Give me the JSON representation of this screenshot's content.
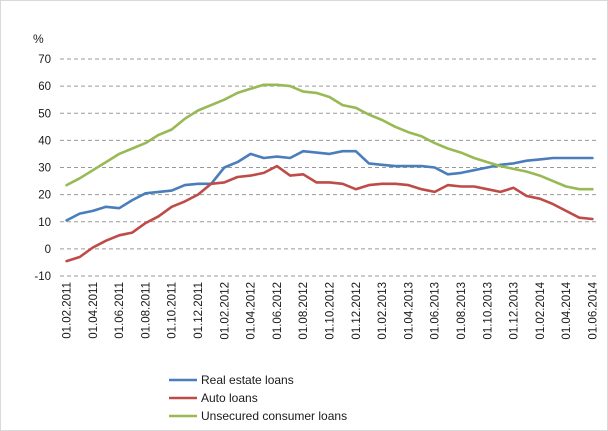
{
  "chart_data": {
    "type": "line",
    "ylabel": "%",
    "ylim": [
      -10,
      70
    ],
    "ytick_step": 10,
    "grid": "horizontal dashed",
    "legend_position": "bottom-left",
    "x": [
      "01.02.2011",
      "01.03.2011",
      "01.04.2011",
      "01.05.2011",
      "01.06.2011",
      "01.07.2011",
      "01.08.2011",
      "01.09.2011",
      "01.10.2011",
      "01.11.2011",
      "01.12.2011",
      "01.01.2012",
      "01.02.2012",
      "01.03.2012",
      "01.04.2012",
      "01.05.2012",
      "01.06.2012",
      "01.07.2012",
      "01.08.2012",
      "01.09.2012",
      "01.10.2012",
      "01.11.2012",
      "01.12.2012",
      "01.01.2013",
      "01.02.2013",
      "01.03.2013",
      "01.04.2013",
      "01.05.2013",
      "01.06.2013",
      "01.07.2013",
      "01.08.2013",
      "01.09.2013",
      "01.10.2013",
      "01.11.2013",
      "01.12.2013",
      "01.01.2014",
      "01.02.2014",
      "01.03.2014",
      "01.04.2014",
      "01.05.2014",
      "01.06.2014"
    ],
    "x_tick_labels": [
      "01.02.2011",
      "01.04.2011",
      "01.06.2011",
      "01.08.2011",
      "01.10.2011",
      "01.12.2011",
      "01.02.2012",
      "01.04.2012",
      "01.06.2012",
      "01.08.2012",
      "01.10.2012",
      "01.12.2012",
      "01.02.2013",
      "01.04.2013",
      "01.06.2013",
      "01.08.2013",
      "01.10.2013",
      "01.12.2013",
      "01.02.2014",
      "01.04.2014",
      "01.06.2014"
    ],
    "series": [
      {
        "name": "Real estate loans",
        "color": "#4a7ebb",
        "values": [
          10.5,
          13,
          14,
          15.5,
          15,
          18,
          20.5,
          21,
          21.5,
          23.5,
          24,
          24,
          30,
          32,
          35,
          33.5,
          34,
          33.5,
          36,
          35.5,
          35,
          36,
          36,
          31.5,
          31,
          30.5,
          30.5,
          30.5,
          30,
          27.5,
          28,
          29,
          30,
          31,
          31.5,
          32.5,
          33,
          33.5,
          33.5,
          33.5,
          33.5
        ]
      },
      {
        "name": "Auto loans",
        "color": "#be4b48",
        "values": [
          -4.5,
          -3,
          0.5,
          3,
          5,
          6,
          9.5,
          12,
          15.5,
          17.5,
          20,
          24,
          24.5,
          26.5,
          27,
          28,
          30.5,
          27,
          27.5,
          24.5,
          24.5,
          24,
          22,
          23.5,
          24,
          24,
          23.5,
          22,
          21,
          23.5,
          23,
          23,
          22,
          21,
          22.5,
          19.5,
          18.5,
          16.5,
          14,
          11.5,
          11
        ]
      },
      {
        "name": "Unsecured consumer loans",
        "color": "#98b954",
        "values": [
          23.5,
          26,
          29,
          32,
          35,
          37,
          39,
          42,
          44,
          48,
          51,
          53,
          55,
          57.5,
          59,
          60.5,
          60.5,
          60,
          58,
          57.5,
          56,
          53,
          52,
          49.5,
          47.5,
          45,
          43,
          41.5,
          39,
          37,
          35.5,
          33.5,
          32,
          30.5,
          29.5,
          28.5,
          27,
          25,
          23,
          22,
          22
        ]
      }
    ]
  }
}
